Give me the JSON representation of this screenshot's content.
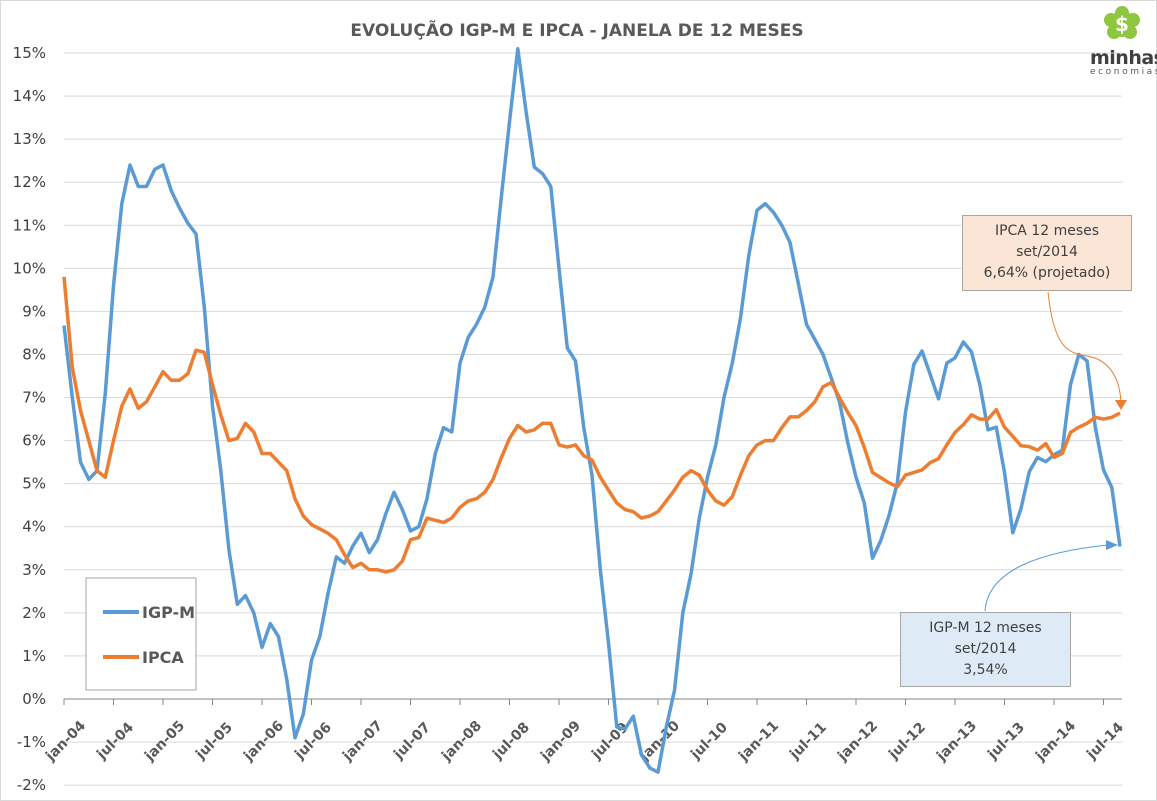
{
  "chart_data": {
    "type": "line",
    "title": "EVOLUÇÃO IGP-M E IPCA - JANELA DE 12 MESES",
    "xlabel": "",
    "ylabel": "",
    "ylim": [
      -2,
      15
    ],
    "y_ticks": [
      "15%",
      "14%",
      "13%",
      "12%",
      "11%",
      "10%",
      "9%",
      "8%",
      "7%",
      "6%",
      "5%",
      "4%",
      "3%",
      "2%",
      "1%",
      "0%",
      "-1%",
      "-2%"
    ],
    "x_ticks": [
      "jan-04",
      "jul-04",
      "jan-05",
      "jul-05",
      "jan-06",
      "jul-06",
      "jan-07",
      "jul-07",
      "jan-08",
      "jul-08",
      "jan-09",
      "jul-09",
      "jan-10",
      "jul-10",
      "jan-11",
      "jul-11",
      "jan-12",
      "jul-12",
      "jan-13",
      "jul-13",
      "jan-14",
      "jul-14"
    ],
    "grid": true,
    "legend_position": "bottom-left",
    "x": [
      "jan-04",
      "fev-04",
      "mar-04",
      "abr-04",
      "mai-04",
      "jun-04",
      "jul-04",
      "ago-04",
      "set-04",
      "out-04",
      "nov-04",
      "dez-04",
      "jan-05",
      "fev-05",
      "mar-05",
      "abr-05",
      "mai-05",
      "jun-05",
      "jul-05",
      "ago-05",
      "set-05",
      "out-05",
      "nov-05",
      "dez-05",
      "jan-06",
      "fev-06",
      "mar-06",
      "abr-06",
      "mai-06",
      "jun-06",
      "jul-06",
      "ago-06",
      "set-06",
      "out-06",
      "nov-06",
      "dez-06",
      "jan-07",
      "fev-07",
      "mar-07",
      "abr-07",
      "mai-07",
      "jun-07",
      "jul-07",
      "ago-07",
      "set-07",
      "out-07",
      "nov-07",
      "dez-07",
      "jan-08",
      "fev-08",
      "mar-08",
      "abr-08",
      "mai-08",
      "jun-08",
      "jul-08",
      "ago-08",
      "set-08",
      "out-08",
      "nov-08",
      "dez-08",
      "jan-09",
      "fev-09",
      "mar-09",
      "abr-09",
      "mai-09",
      "jun-09",
      "jul-09",
      "ago-09",
      "set-09",
      "out-09",
      "nov-09",
      "dez-09",
      "jan-10",
      "fev-10",
      "mar-10",
      "abr-10",
      "mai-10",
      "jun-10",
      "jul-10",
      "ago-10",
      "set-10",
      "out-10",
      "nov-10",
      "dez-10",
      "jan-11",
      "fev-11",
      "mar-11",
      "abr-11",
      "mai-11",
      "jun-11",
      "jul-11",
      "ago-11",
      "set-11",
      "out-11",
      "nov-11",
      "dez-11",
      "jan-12",
      "fev-12",
      "mar-12",
      "abr-12",
      "mai-12",
      "jun-12",
      "jul-12",
      "ago-12",
      "set-12",
      "out-12",
      "nov-12",
      "dez-12",
      "jan-13",
      "fev-13",
      "mar-13",
      "abr-13",
      "mai-13",
      "jun-13",
      "jul-13",
      "ago-13",
      "set-13",
      "out-13",
      "nov-13",
      "dez-13",
      "jan-14",
      "fev-14",
      "mar-14",
      "abr-14",
      "mai-14",
      "jun-14",
      "jul-14",
      "ago-14",
      "set-14"
    ],
    "series": [
      {
        "name": "IGP-M",
        "color": "#5B9BD5",
        "values": [
          8.67,
          7.0,
          5.5,
          5.1,
          5.3,
          7.1,
          9.6,
          11.5,
          12.4,
          11.9,
          11.9,
          12.3,
          12.4,
          11.8,
          11.4,
          11.05,
          10.8,
          9.1,
          6.8,
          5.3,
          3.45,
          2.2,
          2.4,
          2.0,
          1.2,
          1.75,
          1.45,
          0.45,
          -0.9,
          -0.35,
          0.9,
          1.45,
          2.45,
          3.3,
          3.15,
          3.55,
          3.85,
          3.4,
          3.7,
          4.3,
          4.8,
          4.4,
          3.9,
          4.0,
          4.65,
          5.7,
          6.3,
          6.2,
          7.8,
          8.4,
          8.7,
          9.1,
          9.8,
          11.65,
          13.4,
          15.1,
          13.65,
          12.35,
          12.2,
          11.9,
          10.0,
          8.15,
          7.85,
          6.3,
          5.2,
          3.0,
          1.3,
          -0.65,
          -0.7,
          -0.4,
          -1.3,
          -1.6,
          -1.7,
          -0.65,
          0.2,
          2.0,
          2.9,
          4.2,
          5.15,
          5.9,
          7.0,
          7.8,
          8.85,
          10.3,
          11.35,
          11.5,
          11.3,
          11.0,
          10.6,
          9.65,
          8.7,
          8.35,
          8.0,
          7.45,
          6.9,
          5.95,
          5.15,
          4.55,
          3.27,
          3.68,
          4.26,
          5.02,
          6.66,
          7.77,
          8.08,
          7.53,
          6.97,
          7.8,
          7.92,
          8.29,
          8.06,
          7.3,
          6.25,
          6.31,
          5.26,
          3.86,
          4.42,
          5.28,
          5.61,
          5.51,
          5.67,
          5.78,
          7.3,
          8.0,
          7.85,
          6.31,
          5.32,
          4.91,
          3.54
        ]
      },
      {
        "name": "IPCA",
        "color": "#ED7D31",
        "values": [
          9.8,
          7.7,
          6.7,
          6.0,
          5.3,
          5.15,
          6.0,
          6.8,
          7.2,
          6.75,
          6.9,
          7.25,
          7.6,
          7.4,
          7.4,
          7.55,
          8.1,
          8.05,
          7.3,
          6.6,
          6.0,
          6.05,
          6.4,
          6.2,
          5.7,
          5.7,
          5.5,
          5.3,
          4.65,
          4.25,
          4.05,
          3.95,
          3.85,
          3.7,
          3.35,
          3.05,
          3.15,
          3.0,
          3.0,
          2.95,
          3.0,
          3.2,
          3.7,
          3.75,
          4.2,
          4.15,
          4.1,
          4.2,
          4.45,
          4.6,
          4.65,
          4.8,
          5.1,
          5.6,
          6.05,
          6.35,
          6.2,
          6.25,
          6.4,
          6.4,
          5.9,
          5.85,
          5.9,
          5.65,
          5.55,
          5.15,
          4.85,
          4.55,
          4.4,
          4.35,
          4.2,
          4.25,
          4.35,
          4.6,
          4.85,
          5.15,
          5.3,
          5.2,
          4.85,
          4.6,
          4.5,
          4.7,
          5.2,
          5.65,
          5.9,
          6.0,
          6.0,
          6.3,
          6.55,
          6.55,
          6.7,
          6.9,
          7.25,
          7.35,
          7.0,
          6.65,
          6.35,
          5.84,
          5.26,
          5.14,
          5.02,
          4.93,
          5.2,
          5.26,
          5.32,
          5.49,
          5.58,
          5.9,
          6.19,
          6.37,
          6.6,
          6.5,
          6.5,
          6.72,
          6.31,
          6.1,
          5.88,
          5.86,
          5.78,
          5.93,
          5.61,
          5.7,
          6.19,
          6.31,
          6.4,
          6.54,
          6.5,
          6.54,
          6.64
        ]
      }
    ],
    "annotations": [
      {
        "series": "IPCA",
        "lines": [
          "IPCA 12 meses",
          "set/2014",
          "6,64% (projetado)"
        ],
        "fill": "#FBE5D6"
      },
      {
        "series": "IGP-M",
        "lines": [
          "IGP-M 12 meses",
          "set/2014",
          "3,54%"
        ],
        "fill": "#DEEBF7"
      }
    ]
  },
  "logo": {
    "word": "minhas",
    "sub": "economias",
    "symbol": "$",
    "color": "#8DC63F"
  }
}
